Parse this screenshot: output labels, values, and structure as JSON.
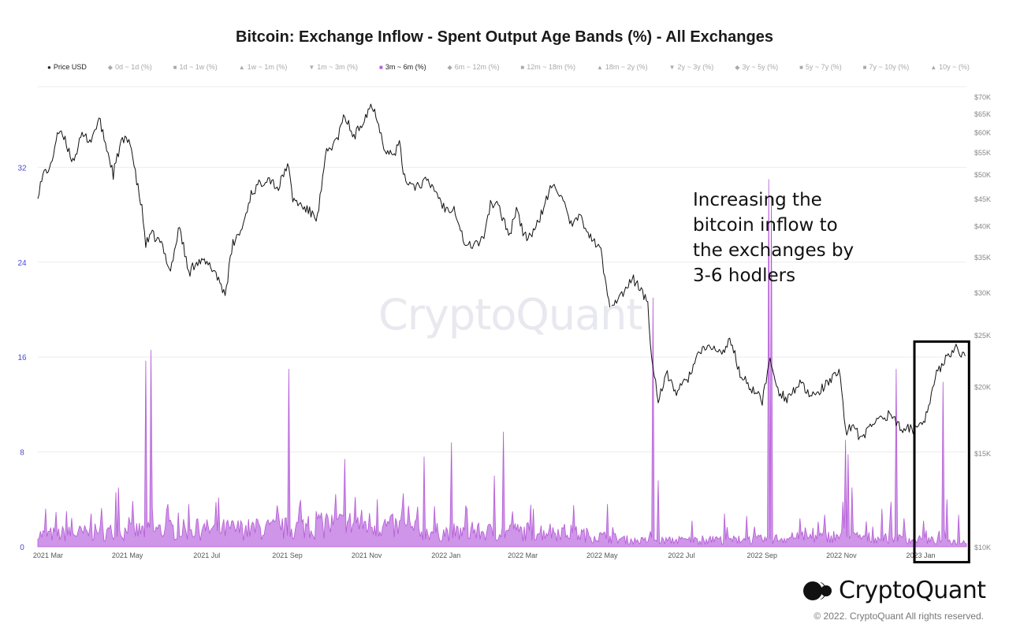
{
  "title": "Bitcoin: Exchange Inflow - Spent Output Age Bands (%) - All Exchanges",
  "legend": [
    {
      "symbol": "●",
      "label": "Price USD",
      "active": true,
      "color": "#222222"
    },
    {
      "symbol": "◆",
      "label": "0d ~ 1d (%)",
      "active": false
    },
    {
      "symbol": "■",
      "label": "1d ~ 1w (%)",
      "active": false
    },
    {
      "symbol": "▲",
      "label": "1w ~ 1m (%)",
      "active": false
    },
    {
      "symbol": "▼",
      "label": "1m ~ 3m (%)",
      "active": false
    },
    {
      "symbol": "■",
      "label": "3m ~ 6m (%)",
      "active": true,
      "color": "#b45ad6"
    },
    {
      "symbol": "◆",
      "label": "6m ~ 12m (%)",
      "active": false
    },
    {
      "symbol": "■",
      "label": "12m ~ 18m (%)",
      "active": false
    },
    {
      "symbol": "▲",
      "label": "18m ~ 2y (%)",
      "active": false
    },
    {
      "symbol": "▼",
      "label": "2y ~ 3y (%)",
      "active": false
    },
    {
      "symbol": "◆",
      "label": "3y ~ 5y (%)",
      "active": false
    },
    {
      "symbol": "■",
      "label": "5y ~ 7y (%)",
      "active": false
    },
    {
      "symbol": "■",
      "label": "7y ~ 10y (%)",
      "active": false
    },
    {
      "symbol": "▲",
      "label": "10y ~ (%)",
      "active": false
    }
  ],
  "annotation": [
    "Increasing the",
    "bitcoin inflow to",
    "the exchanges by",
    "3-6 hodlers"
  ],
  "watermark": "CryptoQuant",
  "brand": "CryptoQuant",
  "copyright": "© 2022. CryptoQuant All rights reserved.",
  "colors": {
    "price": "#111111",
    "band": "#b45ad6",
    "band_fill": "#c98ae6",
    "left_axis": "#4a4ad0",
    "right_axis": "#888888",
    "grid": "#ececec",
    "highlight_box": "#000000"
  },
  "chart_data": {
    "type": "line",
    "x_axis": {
      "type": "date",
      "range": [
        "2021-02-26",
        "2023-02-10"
      ],
      "ticks": [
        {
          "date": "2021-03-01",
          "label": "2021 Mar"
        },
        {
          "date": "2021-05-01",
          "label": "2021 May"
        },
        {
          "date": "2021-07-01",
          "label": "2021 Jul"
        },
        {
          "date": "2021-09-01",
          "label": "2021 Sep"
        },
        {
          "date": "2021-11-01",
          "label": "2021 Nov"
        },
        {
          "date": "2022-01-01",
          "label": "2022 Jan"
        },
        {
          "date": "2022-03-01",
          "label": "2022 Mar"
        },
        {
          "date": "2022-05-01",
          "label": "2022 May"
        },
        {
          "date": "2022-07-01",
          "label": "2022 Jul"
        },
        {
          "date": "2022-09-01",
          "label": "2022 Sep"
        },
        {
          "date": "2022-11-01",
          "label": "2022 Nov"
        },
        {
          "date": "2023-01-01",
          "label": "2023 Jan"
        }
      ]
    },
    "y_left": {
      "range": [
        0,
        38.8
      ],
      "ticks": [
        0,
        8,
        16,
        24,
        32
      ],
      "labels": [
        "0",
        "8",
        "16",
        "24",
        "32"
      ]
    },
    "y_right": {
      "scale": "log",
      "range": [
        10000,
        73000
      ],
      "ticks": [
        10000,
        15000,
        20000,
        25000,
        30000,
        35000,
        40000,
        45000,
        50000,
        55000,
        60000,
        65000,
        70000
      ],
      "labels": [
        "$10K",
        "$15K",
        "$20K",
        "$25K",
        "$30K",
        "$35K",
        "$40K",
        "$45K",
        "$50K",
        "$55K",
        "$60K",
        "$65K",
        "$70K"
      ]
    },
    "grid": true,
    "series": [
      {
        "name": "Price USD",
        "axis": "right",
        "type": "line",
        "points": [
          [
            "2021-02-26",
            46000
          ],
          [
            "2021-03-03",
            50500
          ],
          [
            "2021-03-08",
            51500
          ],
          [
            "2021-03-13",
            60000
          ],
          [
            "2021-03-18",
            58500
          ],
          [
            "2021-03-25",
            53000
          ],
          [
            "2021-04-01",
            59000
          ],
          [
            "2021-04-08",
            58000
          ],
          [
            "2021-04-14",
            63500
          ],
          [
            "2021-04-20",
            56000
          ],
          [
            "2021-04-25",
            50000
          ],
          [
            "2021-05-01",
            57500
          ],
          [
            "2021-05-08",
            58000
          ],
          [
            "2021-05-12",
            50000
          ],
          [
            "2021-05-17",
            43000
          ],
          [
            "2021-05-20",
            37000
          ],
          [
            "2021-05-25",
            38500
          ],
          [
            "2021-06-01",
            37000
          ],
          [
            "2021-06-08",
            33000
          ],
          [
            "2021-06-15",
            40000
          ],
          [
            "2021-06-22",
            32500
          ],
          [
            "2021-06-28",
            34500
          ],
          [
            "2021-07-05",
            34000
          ],
          [
            "2021-07-12",
            33000
          ],
          [
            "2021-07-20",
            29800
          ],
          [
            "2021-07-26",
            37000
          ],
          [
            "2021-08-02",
            39500
          ],
          [
            "2021-08-09",
            46000
          ],
          [
            "2021-08-14",
            47500
          ],
          [
            "2021-08-22",
            49500
          ],
          [
            "2021-08-30",
            47000
          ],
          [
            "2021-09-06",
            52500
          ],
          [
            "2021-09-10",
            45000
          ],
          [
            "2021-09-20",
            43000
          ],
          [
            "2021-09-29",
            41500
          ],
          [
            "2021-10-06",
            55000
          ],
          [
            "2021-10-14",
            58000
          ],
          [
            "2021-10-20",
            64500
          ],
          [
            "2021-10-27",
            58500
          ],
          [
            "2021-11-02",
            62500
          ],
          [
            "2021-11-09",
            67500
          ],
          [
            "2021-11-14",
            64000
          ],
          [
            "2021-11-19",
            56500
          ],
          [
            "2021-11-26",
            54000
          ],
          [
            "2021-12-01",
            57000
          ],
          [
            "2021-12-05",
            49000
          ],
          [
            "2021-12-14",
            47500
          ],
          [
            "2021-12-21",
            48500
          ],
          [
            "2021-12-28",
            47000
          ],
          [
            "2022-01-05",
            43000
          ],
          [
            "2022-01-12",
            43500
          ],
          [
            "2022-01-21",
            36500
          ],
          [
            "2022-01-27",
            37000
          ],
          [
            "2022-02-03",
            37500
          ],
          [
            "2022-02-09",
            44000
          ],
          [
            "2022-02-15",
            43500
          ],
          [
            "2022-02-24",
            38500
          ],
          [
            "2022-03-01",
            43500
          ],
          [
            "2022-03-07",
            38000
          ],
          [
            "2022-03-15",
            39000
          ],
          [
            "2022-03-28",
            47500
          ],
          [
            "2022-04-05",
            46000
          ],
          [
            "2022-04-11",
            40000
          ],
          [
            "2022-04-20",
            41500
          ],
          [
            "2022-04-27",
            38000
          ],
          [
            "2022-05-05",
            36000
          ],
          [
            "2022-05-09",
            30500
          ],
          [
            "2022-05-12",
            28500
          ],
          [
            "2022-05-20",
            29500
          ],
          [
            "2022-05-30",
            31800
          ],
          [
            "2022-06-06",
            30000
          ],
          [
            "2022-06-10",
            28500
          ],
          [
            "2022-06-13",
            22500
          ],
          [
            "2022-06-18",
            19000
          ],
          [
            "2022-06-25",
            21000
          ],
          [
            "2022-07-02",
            19500
          ],
          [
            "2022-07-10",
            20500
          ],
          [
            "2022-07-19",
            23000
          ],
          [
            "2022-07-29",
            23800
          ],
          [
            "2022-08-05",
            23000
          ],
          [
            "2022-08-13",
            24400
          ],
          [
            "2022-08-20",
            21000
          ],
          [
            "2022-08-26",
            20200
          ],
          [
            "2022-09-06",
            18800
          ],
          [
            "2022-09-12",
            22400
          ],
          [
            "2022-09-19",
            19500
          ],
          [
            "2022-09-25",
            19000
          ],
          [
            "2022-10-05",
            20300
          ],
          [
            "2022-10-13",
            19000
          ],
          [
            "2022-10-25",
            20100
          ],
          [
            "2022-11-05",
            21300
          ],
          [
            "2022-11-09",
            16500
          ],
          [
            "2022-11-15",
            16900
          ],
          [
            "2022-11-21",
            15800
          ],
          [
            "2022-11-30",
            17100
          ],
          [
            "2022-12-14",
            17800
          ],
          [
            "2022-12-20",
            16800
          ],
          [
            "2022-12-30",
            16600
          ],
          [
            "2023-01-08",
            17100
          ],
          [
            "2023-01-13",
            19000
          ],
          [
            "2023-01-18",
            21000
          ],
          [
            "2023-01-26",
            23000
          ],
          [
            "2023-02-02",
            23500
          ],
          [
            "2023-02-09",
            22800
          ]
        ]
      },
      {
        "name": "3m ~ 6m (%)",
        "axis": "left",
        "type": "area",
        "baseline": [
          [
            "2021-02-26",
            1.0
          ],
          [
            "2021-06-01",
            1.4
          ],
          [
            "2021-09-01",
            1.5
          ],
          [
            "2021-11-01",
            2.0
          ],
          [
            "2022-01-01",
            1.2
          ],
          [
            "2022-04-01",
            1.3
          ],
          [
            "2022-06-01",
            0.5
          ],
          [
            "2022-09-01",
            0.6
          ],
          [
            "2022-11-01",
            0.9
          ],
          [
            "2023-02-10",
            0.4
          ]
        ],
        "spikes": [
          [
            "2021-03-04",
            3.2
          ],
          [
            "2021-03-20",
            3.0
          ],
          [
            "2021-04-08",
            2.8
          ],
          [
            "2021-04-27",
            4.6
          ],
          [
            "2021-04-29",
            5.0
          ],
          [
            "2021-05-07",
            2.5
          ],
          [
            "2021-05-20",
            15.7
          ],
          [
            "2021-05-24",
            16.6
          ],
          [
            "2021-06-05",
            3.1
          ],
          [
            "2021-06-28",
            2.3
          ],
          [
            "2021-07-26",
            2.2
          ],
          [
            "2021-08-14",
            2.3
          ],
          [
            "2021-08-30",
            2.8
          ],
          [
            "2021-09-07",
            15.0
          ],
          [
            "2021-09-22",
            2.6
          ],
          [
            "2021-09-28",
            3.0
          ],
          [
            "2021-10-06",
            2.8
          ],
          [
            "2021-10-20",
            7.4
          ],
          [
            "2021-10-28",
            4.2
          ],
          [
            "2021-11-14",
            4.0
          ],
          [
            "2021-12-04",
            4.5
          ],
          [
            "2021-12-20",
            7.6
          ],
          [
            "2022-01-10",
            8.8
          ],
          [
            "2022-01-22",
            3.2
          ],
          [
            "2022-02-12",
            6.0
          ],
          [
            "2022-02-19",
            9.7
          ],
          [
            "2022-03-14",
            3.2
          ],
          [
            "2022-04-14",
            3.5
          ],
          [
            "2022-05-10",
            3.6
          ],
          [
            "2022-06-14",
            21.0
          ],
          [
            "2022-06-18",
            5.6
          ],
          [
            "2022-07-14",
            2.2
          ],
          [
            "2022-08-08",
            2.8
          ],
          [
            "2022-08-25",
            2.6
          ],
          [
            "2022-09-11",
            31.0
          ],
          [
            "2022-09-13",
            29.5
          ],
          [
            "2022-10-05",
            2.4
          ],
          [
            "2022-10-24",
            2.7
          ],
          [
            "2022-11-07",
            3.8
          ],
          [
            "2022-11-09",
            9.0
          ],
          [
            "2022-11-11",
            7.8
          ],
          [
            "2022-11-14",
            5.0
          ],
          [
            "2022-12-07",
            3.2
          ],
          [
            "2022-12-14",
            3.8
          ],
          [
            "2022-12-18",
            15.0
          ],
          [
            "2022-12-24",
            2.4
          ],
          [
            "2023-01-08",
            2.2
          ],
          [
            "2023-01-23",
            13.9
          ],
          [
            "2023-01-26",
            4.0
          ],
          [
            "2023-02-04",
            2.7
          ]
        ]
      }
    ],
    "highlight_box": {
      "x": [
        "2023-01-01",
        "2023-02-12"
      ],
      "y_left": [
        -1.3,
        17.3
      ]
    }
  }
}
